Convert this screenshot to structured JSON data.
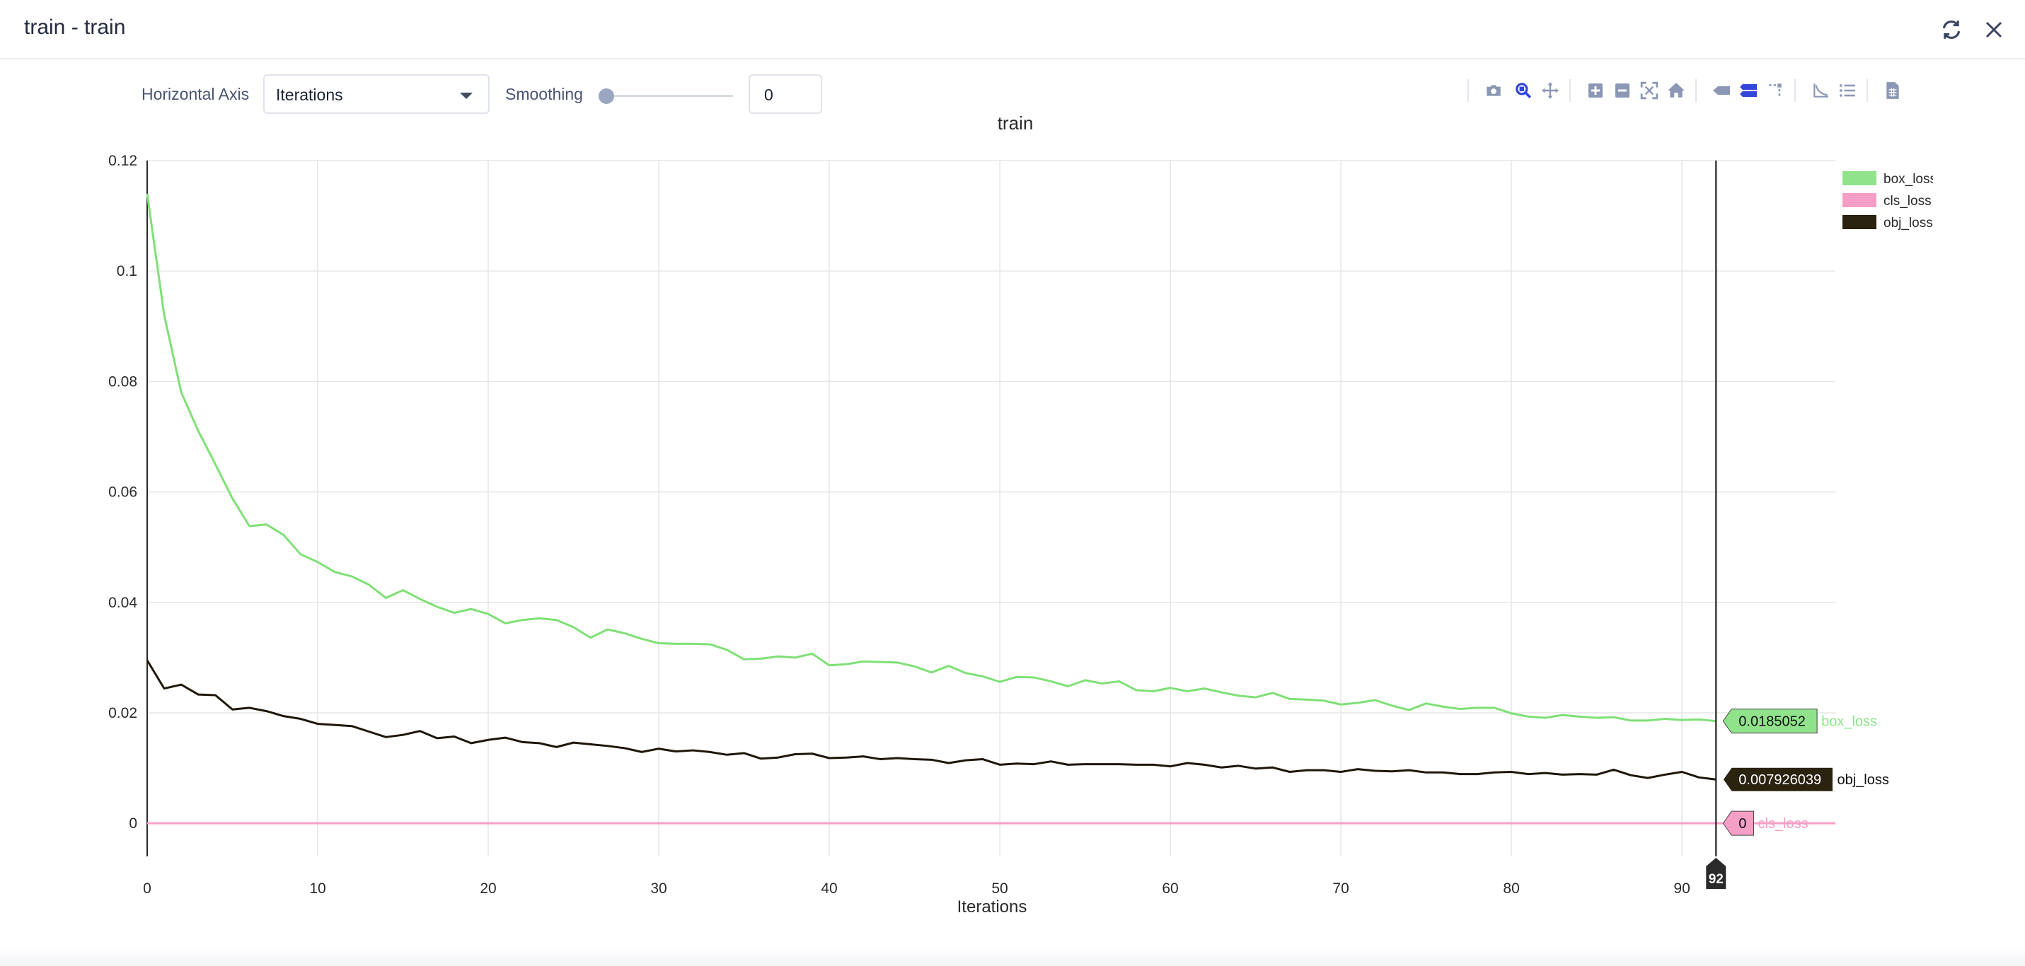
{
  "window": {
    "title": "train - train",
    "refresh_icon": "refresh-icon",
    "close_icon": "close-icon"
  },
  "controls": {
    "horizontal_axis_label": "Horizontal Axis",
    "horizontal_axis_value": "Iterations",
    "smoothing_label": "Smoothing",
    "smoothing_value": "0",
    "smoothing_slider_fraction": 0
  },
  "modebar": [
    {
      "name": "download-plot-button",
      "icon": "camera-icon"
    },
    {
      "name": "zoom-button",
      "icon": "zoom-icon",
      "active": true
    },
    {
      "name": "pan-button",
      "icon": "pan-icon"
    },
    {
      "name": "zoom-in-button",
      "icon": "zoom-in-icon"
    },
    {
      "name": "zoom-out-button",
      "icon": "zoom-out-icon"
    },
    {
      "name": "autoscale-button",
      "icon": "autoscale-icon"
    },
    {
      "name": "reset-axes-button",
      "icon": "home-icon"
    },
    {
      "name": "hover-closest-button",
      "icon": "hover-closest-icon"
    },
    {
      "name": "hover-compare-button",
      "icon": "hover-compare-icon",
      "active": true
    },
    {
      "name": "spike-lines-button",
      "icon": "spike-lines-icon"
    },
    {
      "name": "log-scale-button",
      "icon": "log-axis-icon"
    },
    {
      "name": "legend-toggle-button",
      "icon": "list-icon"
    },
    {
      "name": "export-csv-button",
      "icon": "csv-file-icon"
    }
  ],
  "chart_data": {
    "type": "line",
    "title": "train",
    "xlabel": "Iterations",
    "ylabel": "",
    "xlim": [
      0,
      99
    ],
    "ylim": [
      -0.006,
      0.12
    ],
    "x_ticks": [
      0,
      10,
      20,
      30,
      40,
      50,
      60,
      70,
      80,
      90
    ],
    "y_ticks": [
      0,
      0.02,
      0.04,
      0.06,
      0.08,
      0.1,
      0.12
    ],
    "y_tick_labels": [
      "0",
      "0.02",
      "0.04",
      "0.06",
      "0.08",
      "0.1",
      "0.12"
    ],
    "grid": true,
    "legend_position": "top-right",
    "legend_labels": [
      "box_loss",
      "cls_loss",
      "obj_loss"
    ],
    "hover": {
      "x": 92,
      "x_label": "92",
      "labels": [
        {
          "series": "box_loss",
          "value_text": "0.0185052",
          "value": 0.0185052
        },
        {
          "series": "obj_loss",
          "value_text": "0.007926039",
          "value": 0.007926039
        },
        {
          "series": "cls_loss",
          "value_text": "0",
          "value": 0
        }
      ]
    },
    "series": [
      {
        "name": "box_loss",
        "color": "#90e38a",
        "line_color": "#7fe076",
        "x_start": 0,
        "values": [
          0.114,
          0.092,
          0.078,
          0.071,
          0.065,
          0.0588,
          0.0538,
          0.0541,
          0.0522,
          0.0487,
          0.0473,
          0.0455,
          0.0447,
          0.0432,
          0.0408,
          0.0422,
          0.0406,
          0.0392,
          0.0381,
          0.0388,
          0.0379,
          0.0362,
          0.0368,
          0.0371,
          0.0368,
          0.0355,
          0.0336,
          0.0351,
          0.0344,
          0.0334,
          0.0326,
          0.0325,
          0.0325,
          0.0324,
          0.0314,
          0.0297,
          0.0298,
          0.0302,
          0.03,
          0.0307,
          0.0286,
          0.0288,
          0.0293,
          0.0292,
          0.0291,
          0.0284,
          0.0273,
          0.0285,
          0.0272,
          0.0266,
          0.0256,
          0.0265,
          0.0264,
          0.0257,
          0.0248,
          0.0259,
          0.0253,
          0.0257,
          0.0241,
          0.0239,
          0.0245,
          0.0239,
          0.0244,
          0.0237,
          0.0231,
          0.0228,
          0.0236,
          0.0225,
          0.0224,
          0.0222,
          0.0215,
          0.0218,
          0.0223,
          0.0213,
          0.0205,
          0.0217,
          0.0211,
          0.0207,
          0.0209,
          0.0209,
          0.0199,
          0.0193,
          0.0191,
          0.0196,
          0.0193,
          0.0191,
          0.0192,
          0.0186,
          0.0186,
          0.0189,
          0.0187,
          0.0188,
          0.0185052
        ]
      },
      {
        "name": "cls_loss",
        "color": "#f59ec6",
        "line_color": "#f59ec6",
        "x_start": 0,
        "x_end": 99,
        "values": [
          0,
          0
        ]
      },
      {
        "name": "obj_loss",
        "color": "#2b2210",
        "line_color": "#1e1608",
        "x_start": 0,
        "values": [
          0.0295,
          0.0244,
          0.0251,
          0.0233,
          0.0232,
          0.0206,
          0.0209,
          0.0203,
          0.0194,
          0.0189,
          0.018,
          0.0178,
          0.0176,
          0.0166,
          0.0156,
          0.016,
          0.0167,
          0.0154,
          0.0157,
          0.0145,
          0.0151,
          0.0155,
          0.0147,
          0.0145,
          0.0138,
          0.0146,
          0.0143,
          0.014,
          0.0136,
          0.0129,
          0.0135,
          0.013,
          0.0132,
          0.0129,
          0.0124,
          0.0127,
          0.0117,
          0.0119,
          0.0125,
          0.0126,
          0.0118,
          0.0119,
          0.0121,
          0.0116,
          0.0118,
          0.0116,
          0.0115,
          0.0109,
          0.0114,
          0.0116,
          0.0106,
          0.0108,
          0.0107,
          0.0112,
          0.0106,
          0.0107,
          0.0107,
          0.0107,
          0.0106,
          0.0106,
          0.0103,
          0.0109,
          0.0106,
          0.0101,
          0.0104,
          0.0099,
          0.0101,
          0.0093,
          0.0096,
          0.0096,
          0.0093,
          0.0098,
          0.0095,
          0.0094,
          0.0096,
          0.0092,
          0.0092,
          0.0089,
          0.0089,
          0.0092,
          0.0093,
          0.0089,
          0.0091,
          0.0088,
          0.0089,
          0.0088,
          0.0097,
          0.0087,
          0.0082,
          0.0088,
          0.0093,
          0.0083,
          0.007926039
        ]
      }
    ]
  }
}
